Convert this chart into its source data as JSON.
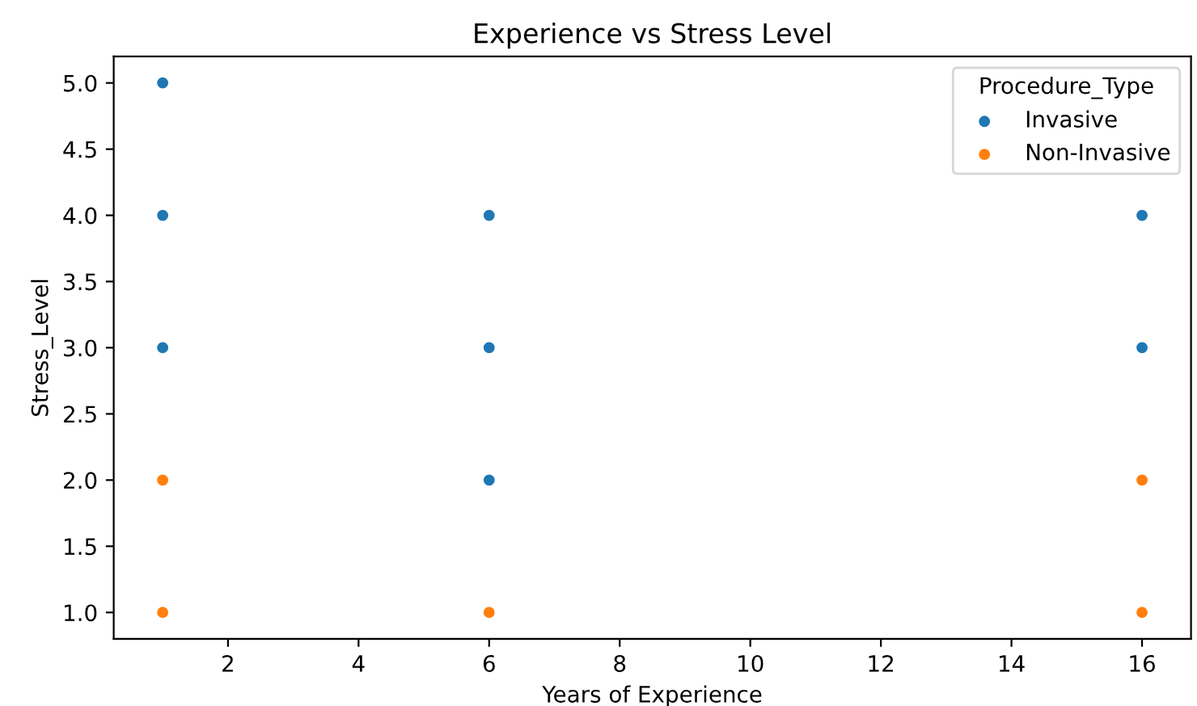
{
  "chart_data": {
    "type": "scatter",
    "title": "Experience vs Stress Level",
    "xlabel": "Years of Experience",
    "ylabel": "Stress_Level",
    "legend_title": "Procedure_Type",
    "legend": "top right",
    "grid": false,
    "marker": "circle",
    "xlim": [
      0.25,
      16.75
    ],
    "xticks": [
      2,
      4,
      6,
      8,
      10,
      12,
      14,
      16
    ],
    "ylim": [
      0.8,
      5.2
    ],
    "yticks": [
      {
        "value": 1,
        "label": "1.0"
      },
      {
        "value": 1.5,
        "label": "1.5"
      },
      {
        "value": 2,
        "label": "2.0"
      },
      {
        "value": 2.5,
        "label": "2.5"
      },
      {
        "value": 3,
        "label": "3.0"
      },
      {
        "value": 3.5,
        "label": "3.5"
      },
      {
        "value": 4,
        "label": "4.0"
      },
      {
        "value": 4.5,
        "label": "4.5"
      },
      {
        "value": 5,
        "label": "5.0"
      }
    ],
    "series": [
      {
        "name": "Invasive",
        "color": "#1f77b4",
        "x": [
          1,
          1,
          1,
          6,
          6,
          6,
          16,
          16
        ],
        "values": [
          5,
          4,
          3,
          4,
          3,
          2,
          4,
          3
        ]
      },
      {
        "name": "Non-Invasive",
        "color": "#ff7f0e",
        "x": [
          1,
          1,
          6,
          16,
          16
        ],
        "values": [
          2,
          1,
          1,
          2,
          1
        ]
      }
    ]
  }
}
